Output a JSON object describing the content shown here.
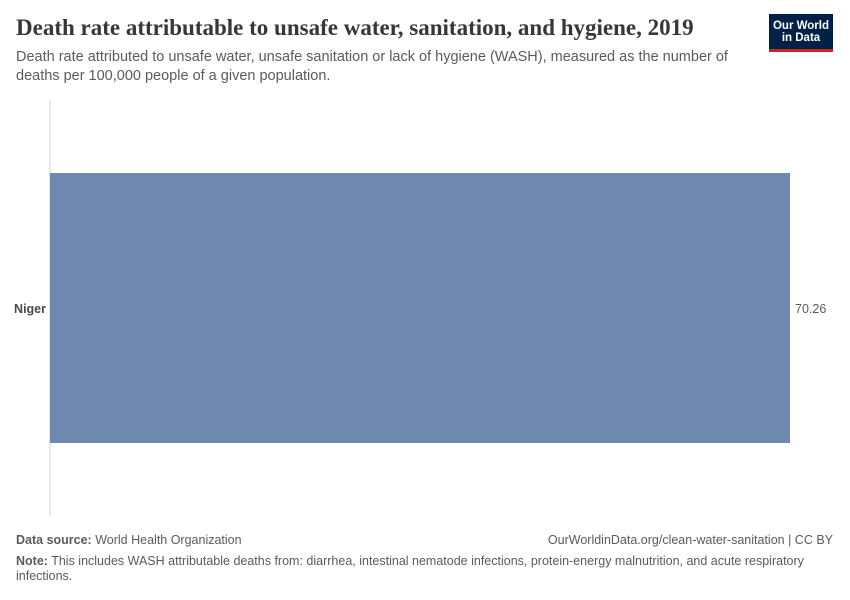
{
  "header": {
    "title": "Death rate attributable to unsafe water, sanitation, and hygiene, 2019",
    "subtitle": "Death rate attributed to unsafe water, unsafe sanitation or lack of hygiene (WASH), measured as the number of deaths per 100,000 people of a given population."
  },
  "logo": {
    "line1": "Our World",
    "line2": "in Data"
  },
  "chart_data": {
    "type": "bar",
    "orientation": "horizontal",
    "categories": [
      "Niger"
    ],
    "values": [
      70.26
    ],
    "value_labels": [
      "70.26"
    ],
    "title": "Death rate attributable to unsafe water, sanitation, and hygiene, 2019",
    "xlim": [
      0,
      70.26
    ],
    "bar_color": "#6f88b0",
    "grid": false
  },
  "footer": {
    "source_label": "Data source:",
    "source_value": "World Health Organization",
    "url": "OurWorldinData.org/clean-water-sanitation | CC BY",
    "note_label": "Note:",
    "note_value": "This includes WASH attributable deaths from: diarrhea, intestinal nematode infections, protein-energy malnutrition, and acute respiratory infections."
  }
}
